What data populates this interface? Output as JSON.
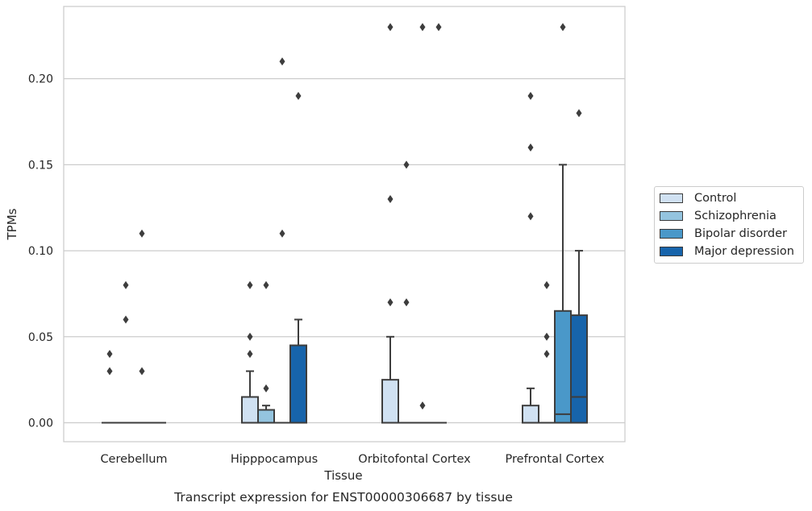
{
  "chart_data": {
    "type": "box",
    "xlabel": "Tissue",
    "ylabel": "TPMs",
    "caption": "Transcript expression for ENST00000306687 by tissue",
    "categories": [
      "Cerebellum",
      "Hipppocampus",
      "Orbitofontal Cortex",
      "Prefrontal Cortex"
    ],
    "ylim": [
      -0.011,
      0.242
    ],
    "yticks": [
      0.0,
      0.05,
      0.1,
      0.15,
      0.2
    ],
    "ytick_labels": [
      "0.00",
      "0.05",
      "0.10",
      "0.15",
      "0.20"
    ],
    "grid": "horizontal",
    "legend_position": "right",
    "series": [
      {
        "name": "Control",
        "color": "#d0e1f2",
        "boxes": [
          {
            "q1": 0,
            "median": 0,
            "q3": 0,
            "whisker_low": 0,
            "whisker_high": 0,
            "outliers": [
              0.03,
              0.04
            ]
          },
          {
            "q1": 0,
            "median": 0,
            "q3": 0.015,
            "whisker_low": 0,
            "whisker_high": 0.03,
            "outliers": [
              0.04,
              0.05,
              0.08
            ]
          },
          {
            "q1": 0,
            "median": 0,
            "q3": 0.025,
            "whisker_low": 0,
            "whisker_high": 0.05,
            "outliers": [
              0.07,
              0.13,
              0.23
            ]
          },
          {
            "q1": 0,
            "median": 0,
            "q3": 0.01,
            "whisker_low": 0,
            "whisker_high": 0.02,
            "outliers": [
              0.12,
              0.16,
              0.19
            ]
          }
        ]
      },
      {
        "name": "Schizophrenia",
        "color": "#94c4df",
        "boxes": [
          {
            "q1": 0,
            "median": 0,
            "q3": 0,
            "whisker_low": 0,
            "whisker_high": 0,
            "outliers": [
              0.06,
              0.08
            ]
          },
          {
            "q1": 0,
            "median": 0,
            "q3": 0.0075,
            "whisker_low": 0,
            "whisker_high": 0.01,
            "outliers": [
              0.02,
              0.08
            ]
          },
          {
            "q1": 0,
            "median": 0,
            "q3": 0,
            "whisker_low": 0,
            "whisker_high": 0,
            "outliers": [
              0.07,
              0.15
            ]
          },
          {
            "q1": 0,
            "median": 0,
            "q3": 0,
            "whisker_low": 0,
            "whisker_high": 0,
            "outliers": [
              0.04,
              0.05,
              0.08
            ]
          }
        ]
      },
      {
        "name": "Bipolar disorder",
        "color": "#4a98c9",
        "boxes": [
          {
            "q1": 0,
            "median": 0,
            "q3": 0,
            "whisker_low": 0,
            "whisker_high": 0,
            "outliers": [
              0.03,
              0.11
            ]
          },
          {
            "q1": 0,
            "median": 0,
            "q3": 0,
            "whisker_low": 0,
            "whisker_high": 0,
            "outliers": [
              0.11,
              0.21
            ]
          },
          {
            "q1": 0,
            "median": 0,
            "q3": 0,
            "whisker_low": 0,
            "whisker_high": 0,
            "outliers": [
              0.01,
              0.23
            ]
          },
          {
            "q1": 0,
            "median": 0.005,
            "q3": 0.065,
            "whisker_low": 0,
            "whisker_high": 0.15,
            "outliers": [
              0.23
            ]
          }
        ]
      },
      {
        "name": "Major depression",
        "color": "#1764ab",
        "boxes": [
          {
            "q1": 0,
            "median": 0,
            "q3": 0,
            "whisker_low": 0,
            "whisker_high": 0,
            "outliers": []
          },
          {
            "q1": 0,
            "median": 0,
            "q3": 0.045,
            "whisker_low": 0,
            "whisker_high": 0.06,
            "outliers": [
              0.19
            ]
          },
          {
            "q1": 0,
            "median": 0,
            "q3": 0,
            "whisker_low": 0,
            "whisker_high": 0,
            "outliers": [
              0.23
            ]
          },
          {
            "q1": 0,
            "median": 0.015,
            "q3": 0.0625,
            "whisker_low": 0,
            "whisker_high": 0.1,
            "outliers": [
              0.18
            ]
          }
        ]
      }
    ]
  }
}
